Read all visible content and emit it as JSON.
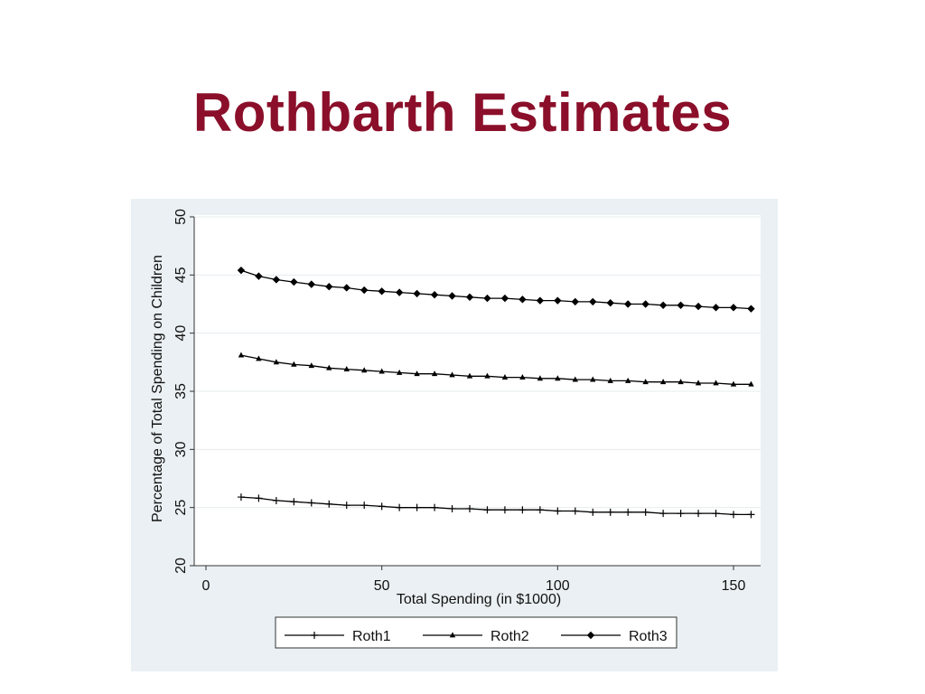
{
  "slide": {
    "title": "Rothbarth Estimates"
  },
  "chart_data": {
    "type": "line",
    "title": "",
    "xlabel": "Total Spending (in $1000)",
    "ylabel": "Percentage of Total Spending on Children",
    "xlim": [
      0,
      157
    ],
    "ylim": [
      20,
      50
    ],
    "xticks": [
      0,
      50,
      100,
      150
    ],
    "yticks": [
      20,
      25,
      30,
      35,
      40,
      45,
      50
    ],
    "grid": "horizontal",
    "legend_position": "bottom",
    "x": [
      10,
      15,
      20,
      25,
      30,
      35,
      40,
      45,
      50,
      55,
      60,
      65,
      70,
      75,
      80,
      85,
      90,
      95,
      100,
      105,
      110,
      115,
      120,
      125,
      130,
      135,
      140,
      145,
      150,
      155
    ],
    "series": [
      {
        "name": "Roth1",
        "marker": "plus",
        "values": [
          25.9,
          25.8,
          25.6,
          25.5,
          25.4,
          25.3,
          25.2,
          25.2,
          25.1,
          25.0,
          25.0,
          25.0,
          24.9,
          24.9,
          24.8,
          24.8,
          24.8,
          24.8,
          24.7,
          24.7,
          24.6,
          24.6,
          24.6,
          24.6,
          24.5,
          24.5,
          24.5,
          24.5,
          24.4,
          24.4
        ]
      },
      {
        "name": "Roth2",
        "marker": "triangle",
        "values": [
          38.1,
          37.8,
          37.5,
          37.3,
          37.2,
          37.0,
          36.9,
          36.8,
          36.7,
          36.6,
          36.5,
          36.5,
          36.4,
          36.3,
          36.3,
          36.2,
          36.2,
          36.1,
          36.1,
          36.0,
          36.0,
          35.9,
          35.9,
          35.8,
          35.8,
          35.8,
          35.7,
          35.7,
          35.6,
          35.6
        ]
      },
      {
        "name": "Roth3",
        "marker": "diamond",
        "values": [
          45.4,
          44.9,
          44.6,
          44.4,
          44.2,
          44.0,
          43.9,
          43.7,
          43.6,
          43.5,
          43.4,
          43.3,
          43.2,
          43.1,
          43.0,
          43.0,
          42.9,
          42.8,
          42.8,
          42.7,
          42.7,
          42.6,
          42.5,
          42.5,
          42.4,
          42.4,
          42.3,
          42.2,
          42.2,
          42.1
        ]
      }
    ]
  }
}
